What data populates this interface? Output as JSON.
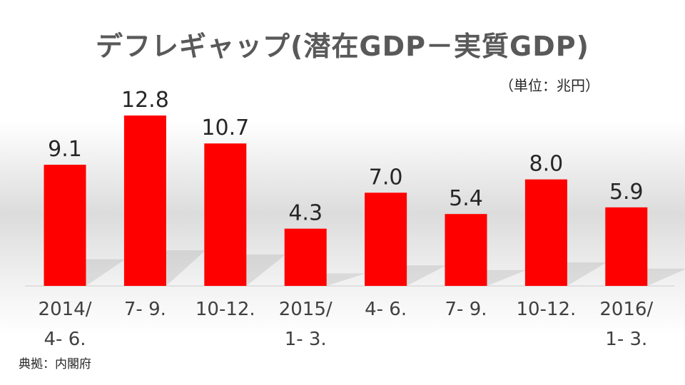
{
  "title": "デフレギャップ(潜在GDP－実質GDP)",
  "unit_label": "（単位：兆円）",
  "source_note": "典拠：内閣府",
  "colors": {
    "bar": "#ff0000",
    "axis": "#d9d9d9",
    "text": "#262626"
  },
  "chart_data": {
    "type": "bar",
    "title": "デフレギャップ(潜在GDP－実質GDP)",
    "categories": [
      [
        "2014/",
        "4- 6."
      ],
      [
        "7- 9."
      ],
      [
        "10-12."
      ],
      [
        "2015/",
        "1- 3."
      ],
      [
        "4- 6."
      ],
      [
        "7- 9."
      ],
      [
        "10-12."
      ],
      [
        "2016/",
        "1- 3."
      ]
    ],
    "values": [
      9.1,
      12.8,
      10.7,
      4.3,
      7.0,
      5.4,
      8.0,
      5.9
    ],
    "value_labels": [
      "9.1",
      "12.8",
      "10.7",
      "4.3",
      "7.0",
      "5.4",
      "8.0",
      "5.9"
    ],
    "ylim": [
      0,
      12.8
    ],
    "grid": false,
    "legend": "none"
  }
}
